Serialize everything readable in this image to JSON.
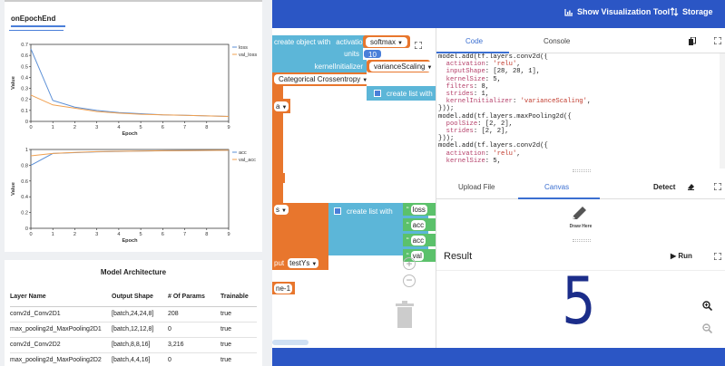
{
  "appbar": {
    "visualize_label": "Show Visualization Tool",
    "storage_label": "Storage"
  },
  "blocks": {
    "create_object_with": "create object with",
    "activation_label": "activation",
    "activation_value": "softmax",
    "units_label": "units",
    "units_value": "10",
    "kernel_initializer_label": "kernelInitializer",
    "kernel_initializer_value": "varianceScaling",
    "loss_value": "Categorical Crossentropy",
    "create_list_with": "create list with",
    "partial_a": "a",
    "partial_s": "s",
    "partial_put": "put",
    "test_ys": "testYs",
    "partial_ne": "ne-1",
    "list_items": [
      "loss",
      "acc",
      "acc",
      "val"
    ]
  },
  "debug": {
    "tab_label": "onEpochEnd",
    "architecture_title": "Model Architecture",
    "arch_columns": [
      "Layer Name",
      "Output Shape",
      "# Of Params",
      "Trainable"
    ],
    "arch_rows": [
      [
        "conv2d_Conv2D1",
        "[batch,24,24,8]",
        "208",
        "true"
      ],
      [
        "max_pooling2d_MaxPooling2D1",
        "[batch,12,12,8]",
        "0",
        "true"
      ],
      [
        "conv2d_Conv2D2",
        "[batch,8,8,16]",
        "3,216",
        "true"
      ],
      [
        "max_pooling2d_MaxPooling2D2",
        "[batch,4,4,16]",
        "0",
        "true"
      ]
    ]
  },
  "chart_data": [
    {
      "type": "line",
      "xlabel": "Epoch",
      "ylabel": "Value",
      "x": [
        0,
        1,
        2,
        3,
        4,
        5,
        6,
        7,
        8,
        9
      ],
      "xlim": [
        0,
        9
      ],
      "ylim": [
        0,
        0.7
      ],
      "yticks": [
        0,
        0.1,
        0.2,
        0.3,
        0.4,
        0.5,
        0.6,
        0.7
      ],
      "legend_position": "right",
      "series": [
        {
          "name": "loss",
          "color": "#5b8fd6",
          "values": [
            0.66,
            0.19,
            0.13,
            0.1,
            0.08,
            0.07,
            0.06,
            0.055,
            0.05,
            0.045
          ]
        },
        {
          "name": "val_loss",
          "color": "#f0a050",
          "values": [
            0.24,
            0.15,
            0.12,
            0.09,
            0.075,
            0.065,
            0.06,
            0.055,
            0.05,
            0.045
          ]
        }
      ]
    },
    {
      "type": "line",
      "xlabel": "Epoch",
      "ylabel": "Value",
      "x": [
        0,
        1,
        2,
        3,
        4,
        5,
        6,
        7,
        8,
        9
      ],
      "xlim": [
        0,
        9
      ],
      "ylim": [
        0,
        1.0
      ],
      "yticks": [
        0,
        0.2,
        0.4,
        0.6,
        0.8,
        1.0
      ],
      "legend_position": "right",
      "series": [
        {
          "name": "acc",
          "color": "#5b8fd6",
          "values": [
            0.8,
            0.95,
            0.96,
            0.97,
            0.975,
            0.98,
            0.983,
            0.985,
            0.987,
            0.99
          ]
        },
        {
          "name": "val_acc",
          "color": "#f0a050",
          "values": [
            0.92,
            0.95,
            0.963,
            0.972,
            0.977,
            0.981,
            0.984,
            0.986,
            0.988,
            0.99
          ]
        }
      ]
    }
  ],
  "code_panel": {
    "tab_code": "Code",
    "tab_console": "Console",
    "lines": [
      [
        [
          "t",
          "model.add(tf.layers.conv2d({"
        ]
      ],
      [
        [
          "t",
          "  "
        ],
        [
          "p",
          "activation"
        ],
        [
          "t",
          ": "
        ],
        [
          "s",
          "'relu'"
        ],
        [
          "t",
          ","
        ]
      ],
      [
        [
          "t",
          "  "
        ],
        [
          "p",
          "inputShape"
        ],
        [
          "t",
          ": [28, 28, 1],"
        ]
      ],
      [
        [
          "t",
          "  "
        ],
        [
          "p",
          "kernelSize"
        ],
        [
          "t",
          ": 5,"
        ]
      ],
      [
        [
          "t",
          "  "
        ],
        [
          "p",
          "filters"
        ],
        [
          "t",
          ": 8,"
        ]
      ],
      [
        [
          "t",
          "  "
        ],
        [
          "p",
          "strides"
        ],
        [
          "t",
          ": 1,"
        ]
      ],
      [
        [
          "t",
          "  "
        ],
        [
          "p",
          "kernelInitializer"
        ],
        [
          "t",
          ": "
        ],
        [
          "s",
          "'varianceScaling'"
        ],
        [
          "t",
          ","
        ]
      ],
      [
        [
          "t",
          "}));"
        ]
      ],
      [
        [
          "t",
          "model.add(tf.layers.maxPooling2d({"
        ]
      ],
      [
        [
          "t",
          "  "
        ],
        [
          "p",
          "poolSize"
        ],
        [
          "t",
          ": [2, 2],"
        ]
      ],
      [
        [
          "t",
          "  "
        ],
        [
          "p",
          "strides"
        ],
        [
          "t",
          ": [2, 2],"
        ]
      ],
      [
        [
          "t",
          "}));"
        ]
      ],
      [
        [
          "t",
          "model.add(tf.layers.conv2d({"
        ]
      ],
      [
        [
          "t",
          "  "
        ],
        [
          "p",
          "activation"
        ],
        [
          "t",
          ": "
        ],
        [
          "s",
          "'relu'"
        ],
        [
          "t",
          ","
        ]
      ],
      [
        [
          "t",
          "  "
        ],
        [
          "p",
          "kernelSize"
        ],
        [
          "t",
          ": 5,"
        ]
      ]
    ]
  },
  "input_panel": {
    "tab_upload": "Upload File",
    "tab_canvas": "Canvas",
    "detect_label": "Detect",
    "draw_label": "Draw Here"
  },
  "result_panel": {
    "title": "Result",
    "run_label": "Run",
    "digit": "5"
  }
}
